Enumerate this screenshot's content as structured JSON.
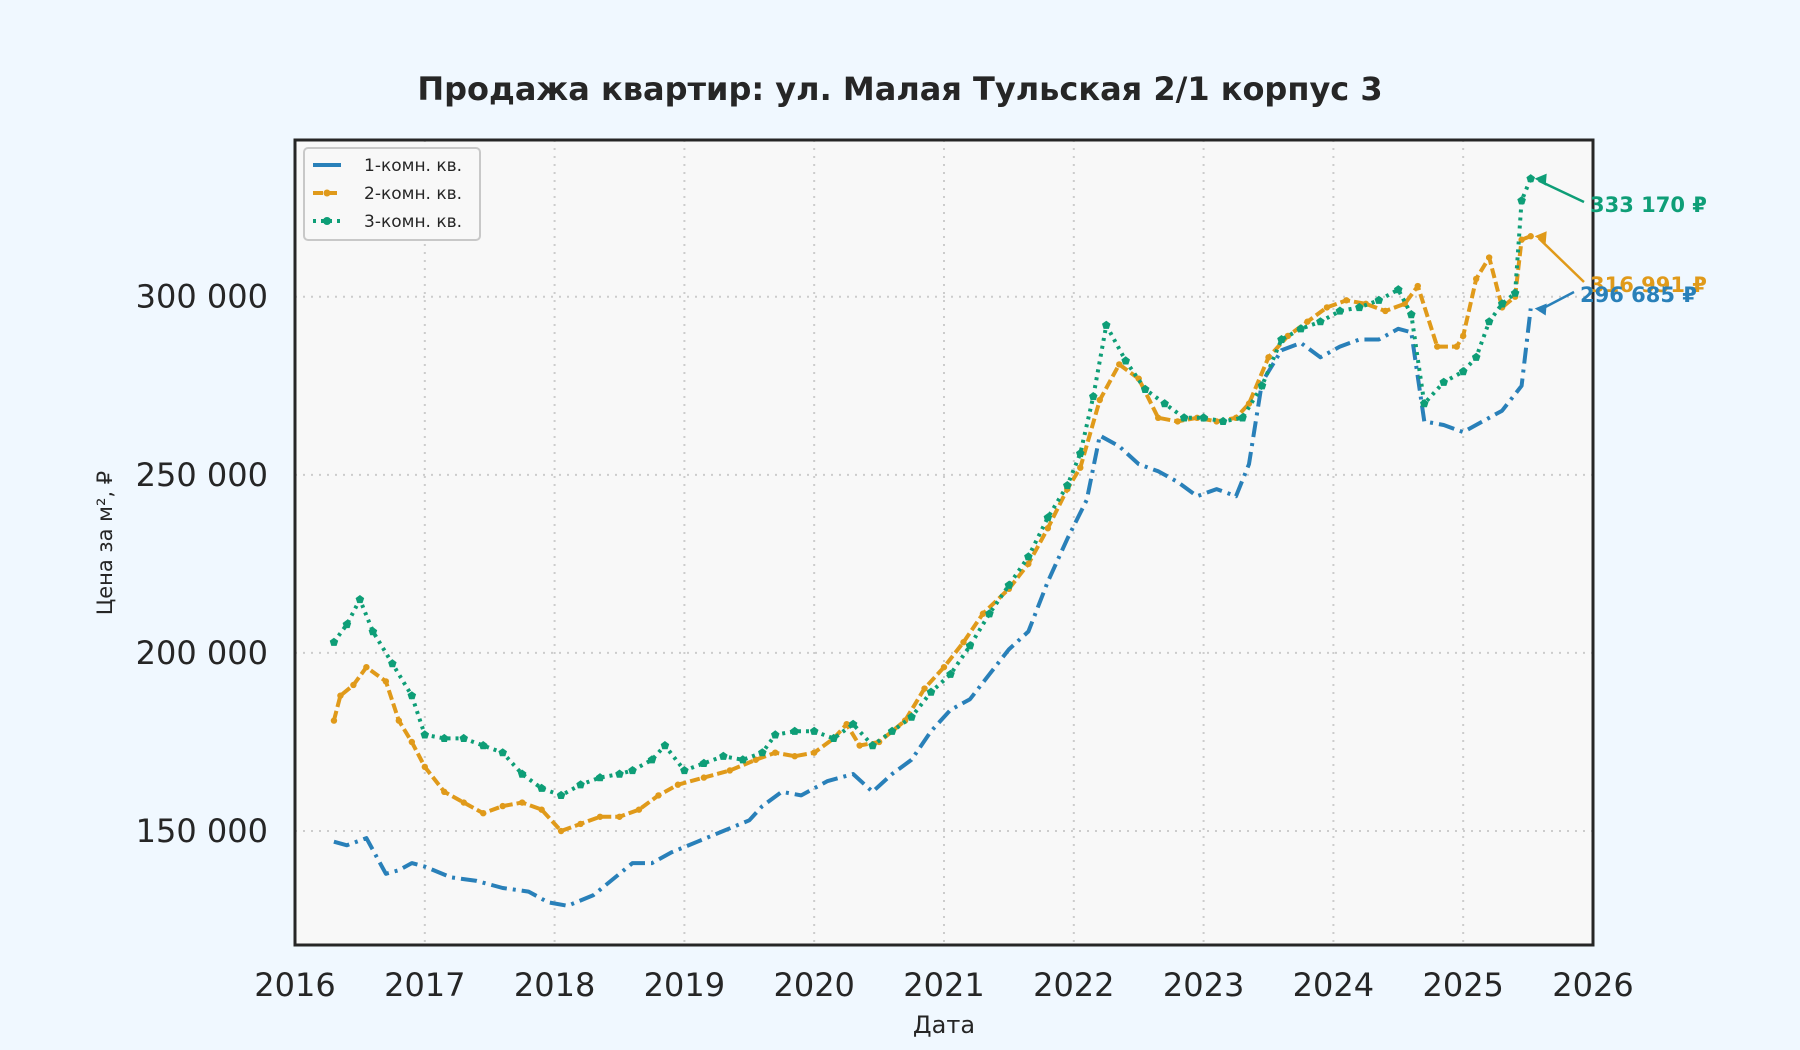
{
  "chart_data": {
    "type": "line",
    "title": "Продажа квартир: ул. Малая Тульская 2/1 корпус 3",
    "xlabel": "Дата",
    "ylabel": "Цена за м², ₽",
    "xlim": [
      2016,
      2026
    ],
    "ylim": [
      118000,
      344000
    ],
    "x_ticks": [
      2016,
      2017,
      2018,
      2019,
      2020,
      2021,
      2022,
      2023,
      2024,
      2025,
      2026
    ],
    "x_tick_labels": [
      "2016",
      "2017",
      "2018",
      "2019",
      "2020",
      "2021",
      "2022",
      "2023",
      "2024",
      "2025",
      "2026"
    ],
    "y_ticks": [
      150000,
      200000,
      250000,
      300000
    ],
    "y_tick_labels": [
      "150 000",
      "200 000",
      "250 000",
      "300 000"
    ],
    "grid": true,
    "legend_position": "upper-left",
    "series": [
      {
        "name": "1-комн. кв.",
        "color": "#2980b9",
        "style": "dashdot",
        "x": [
          2016.3,
          2016.4,
          2016.55,
          2016.7,
          2016.8,
          2016.9,
          2017.0,
          2017.2,
          2017.4,
          2017.6,
          2017.8,
          2017.95,
          2018.1,
          2018.3,
          2018.5,
          2018.6,
          2018.75,
          2018.9,
          2019.1,
          2019.3,
          2019.5,
          2019.6,
          2019.75,
          2019.9,
          2020.1,
          2020.3,
          2020.45,
          2020.6,
          2020.75,
          2020.9,
          2021.05,
          2021.2,
          2021.35,
          2021.5,
          2021.65,
          2021.8,
          2021.95,
          2022.1,
          2022.2,
          2022.35,
          2022.5,
          2022.65,
          2022.8,
          2022.95,
          2023.1,
          2023.25,
          2023.35,
          2023.45,
          2023.6,
          2023.75,
          2023.9,
          2024.05,
          2024.2,
          2024.35,
          2024.5,
          2024.6,
          2024.7,
          2024.85,
          2025.0,
          2025.15,
          2025.3,
          2025.45,
          2025.52
        ],
        "values": [
          147000,
          146000,
          148000,
          138000,
          139000,
          141000,
          140000,
          137000,
          136000,
          134000,
          133000,
          130000,
          129000,
          132000,
          138000,
          141000,
          141000,
          144000,
          147000,
          150000,
          153000,
          157000,
          161000,
          160000,
          164000,
          166000,
          161000,
          166000,
          170000,
          178000,
          184000,
          187000,
          194000,
          201000,
          206000,
          220000,
          232000,
          243000,
          261000,
          258000,
          253000,
          251000,
          248000,
          244000,
          246000,
          244000,
          253000,
          276000,
          285000,
          287000,
          283000,
          286000,
          288000,
          288000,
          291000,
          290000,
          265000,
          264000,
          262000,
          265000,
          268000,
          275000,
          296685
        ]
      },
      {
        "name": "2-комн. кв.",
        "color": "#e09a1a",
        "style": "dashed-marker",
        "x": [
          2016.3,
          2016.35,
          2016.45,
          2016.55,
          2016.7,
          2016.8,
          2016.9,
          2017.0,
          2017.15,
          2017.3,
          2017.45,
          2017.6,
          2017.75,
          2017.9,
          2018.05,
          2018.2,
          2018.35,
          2018.5,
          2018.65,
          2018.8,
          2018.95,
          2019.15,
          2019.35,
          2019.55,
          2019.7,
          2019.85,
          2020.0,
          2020.15,
          2020.25,
          2020.35,
          2020.5,
          2020.7,
          2020.85,
          2021.0,
          2021.15,
          2021.3,
          2021.5,
          2021.65,
          2021.8,
          2021.95,
          2022.05,
          2022.2,
          2022.35,
          2022.5,
          2022.65,
          2022.8,
          2022.95,
          2023.1,
          2023.25,
          2023.35,
          2023.5,
          2023.65,
          2023.8,
          2023.95,
          2024.1,
          2024.25,
          2024.4,
          2024.55,
          2024.65,
          2024.8,
          2024.95,
          2025.0,
          2025.1,
          2025.2,
          2025.3,
          2025.4,
          2025.45,
          2025.52
        ],
        "values": [
          181000,
          188000,
          191000,
          196000,
          192000,
          181000,
          175000,
          168000,
          161000,
          158000,
          155000,
          157000,
          158000,
          156000,
          150000,
          152000,
          154000,
          154000,
          156000,
          160000,
          163000,
          165000,
          167000,
          170000,
          172000,
          171000,
          172000,
          176000,
          180000,
          174000,
          175000,
          181000,
          190000,
          196000,
          203000,
          211000,
          218000,
          225000,
          235000,
          246000,
          252000,
          271000,
          281000,
          277000,
          266000,
          265000,
          266000,
          265000,
          266000,
          270000,
          283000,
          289000,
          293000,
          297000,
          299000,
          298000,
          296000,
          298000,
          303000,
          286000,
          286000,
          289000,
          305000,
          311000,
          297000,
          300000,
          316000,
          316991
        ]
      },
      {
        "name": "3-комн. кв.",
        "color": "#0e9e77",
        "style": "dotted-marker",
        "x": [
          2016.3,
          2016.4,
          2016.5,
          2016.6,
          2016.75,
          2016.9,
          2017.0,
          2017.15,
          2017.3,
          2017.45,
          2017.6,
          2017.75,
          2017.9,
          2018.05,
          2018.2,
          2018.35,
          2018.5,
          2018.6,
          2018.75,
          2018.85,
          2019.0,
          2019.15,
          2019.3,
          2019.45,
          2019.6,
          2019.7,
          2019.85,
          2020.0,
          2020.15,
          2020.3,
          2020.45,
          2020.6,
          2020.75,
          2020.9,
          2021.05,
          2021.2,
          2021.35,
          2021.5,
          2021.65,
          2021.8,
          2021.95,
          2022.05,
          2022.15,
          2022.25,
          2022.4,
          2022.55,
          2022.7,
          2022.85,
          2023.0,
          2023.15,
          2023.3,
          2023.45,
          2023.6,
          2023.75,
          2023.9,
          2024.05,
          2024.2,
          2024.35,
          2024.5,
          2024.6,
          2024.7,
          2024.85,
          2025.0,
          2025.1,
          2025.2,
          2025.3,
          2025.4,
          2025.45,
          2025.52
        ],
        "values": [
          203000,
          208000,
          215000,
          206000,
          197000,
          188000,
          177000,
          176000,
          176000,
          174000,
          172000,
          166000,
          162000,
          160000,
          163000,
          165000,
          166000,
          167000,
          170000,
          174000,
          167000,
          169000,
          171000,
          170000,
          172000,
          177000,
          178000,
          178000,
          176000,
          180000,
          174000,
          178000,
          182000,
          189000,
          194000,
          202000,
          211000,
          219000,
          227000,
          238000,
          247000,
          256000,
          272000,
          292000,
          282000,
          274000,
          270000,
          266000,
          266000,
          265000,
          266000,
          275000,
          288000,
          291000,
          293000,
          296000,
          297000,
          299000,
          302000,
          295000,
          270000,
          276000,
          279000,
          283000,
          293000,
          298000,
          301000,
          327000,
          333170
        ]
      }
    ],
    "annotations": [
      {
        "series": "3-комн. кв.",
        "text": "333 170 ₽",
        "value": 333170
      },
      {
        "series": "2-комн. кв.",
        "text": "316 991 ₽",
        "value": 316991
      },
      {
        "series": "1-комн. кв.",
        "text": "296 685 ₽",
        "value": 296685
      }
    ]
  }
}
